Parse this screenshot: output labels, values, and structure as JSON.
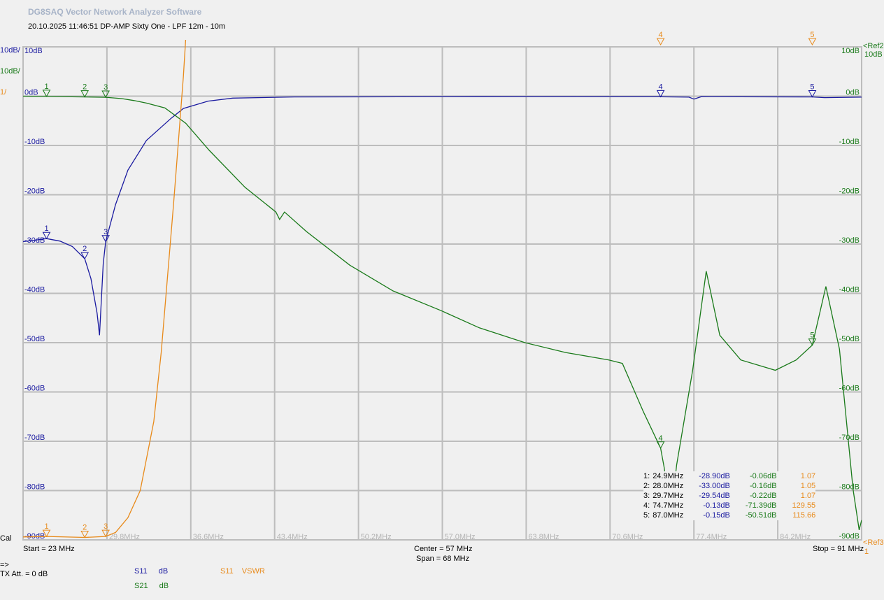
{
  "app_title": "DG8SAQ Vector Network Analyzer Software",
  "subtitle": "20.10.2025   11:46:51   DP-AMP Sixty One - LPF   12m - 10m",
  "left_scale": {
    "s11": "10dB/",
    "s21": "10dB/",
    "vswr": "1/"
  },
  "cal_label": "Cal",
  "start_label": "Start = 23 MHz",
  "center_label": "Center = 57 MHz",
  "span_label": "Span = 68 MHz",
  "stop_label": "Stop = 91 MHz",
  "arrow_label": "=>",
  "tx_att_label": "TX Att.  = 0 dB",
  "ref_top": {
    "label": "<Ref2",
    "value": "10dB"
  },
  "ref_bottom": {
    "label": "<Ref3",
    "value": "1"
  },
  "legend": [
    {
      "param": "S11",
      "unit": "dB",
      "color": "#1a1aa0"
    },
    {
      "param": "S21",
      "unit": "dB",
      "color": "#1a7a1a"
    },
    {
      "param": "S11",
      "unit": "VSWR",
      "color": "#e88a1a"
    }
  ],
  "colors": {
    "s11": "#1a1aa0",
    "s21": "#1a7a1a",
    "vswr": "#e88a1a",
    "grid": "#bdbdbd"
  },
  "marker_table": [
    {
      "n": "1:",
      "freq": "24.9MHz",
      "s11": "-28.90dB",
      "s21": "-0.06dB",
      "vswr": "1.07"
    },
    {
      "n": "2:",
      "freq": "28.0MHz",
      "s11": "-33.00dB",
      "s21": "-0.16dB",
      "vswr": "1.05"
    },
    {
      "n": "3:",
      "freq": "29.7MHz",
      "s11": "-29.54dB",
      "s21": "-0.22dB",
      "vswr": "1.07"
    },
    {
      "n": "4:",
      "freq": "74.7MHz",
      "s11": "-0.13dB",
      "s21": "-71.39dB",
      "vswr": "129.55"
    },
    {
      "n": "5:",
      "freq": "87.0MHz",
      "s11": "-0.15dB",
      "s21": "-50.51dB",
      "vswr": "115.66"
    }
  ],
  "chart_data": {
    "type": "line",
    "xlim": [
      23,
      91
    ],
    "ylim_db": [
      -90,
      10
    ],
    "ylim_vswr": [
      1,
      11
    ],
    "grid": true,
    "x_ticks": [
      "29.8MHz",
      "36.6MHz",
      "43.4MHz",
      "50.2MHz",
      "57.0MHz",
      "63.8MHz",
      "70.6MHz",
      "77.4MHz",
      "84.2MHz"
    ],
    "y_ticks_left": [
      "10dB",
      "0dB",
      "-10dB",
      "-20dB",
      "-30dB",
      "-40dB",
      "-50dB",
      "-60dB",
      "-70dB",
      "-80dB",
      "-90dB"
    ],
    "y_ticks_right": [
      "10dB",
      "0dB",
      "-10dB",
      "-20dB",
      "-30dB",
      "-40dB",
      "-50dB",
      "-60dB",
      "-70dB",
      "-80dB",
      "-90dB"
    ],
    "series": [
      {
        "name": "S11",
        "unit": "dB",
        "axis": "db",
        "color": "#1a1aa0",
        "x": [
          23,
          24,
          24.9,
          26,
          27,
          28,
          28.5,
          29,
          29.2,
          29.5,
          29.7,
          30.5,
          31.5,
          33,
          35,
          36,
          38,
          40,
          45,
          60,
          74.7,
          77,
          77.4,
          78,
          87,
          88,
          91
        ],
        "y": [
          -29.5,
          -29.2,
          -28.9,
          -29.4,
          -30.5,
          -33,
          -37,
          -44,
          -48.5,
          -34,
          -29.5,
          -22,
          -15,
          -9,
          -4.5,
          -2.5,
          -1,
          -0.4,
          -0.15,
          -0.1,
          -0.13,
          -0.2,
          -0.6,
          -0.1,
          -0.15,
          -0.3,
          -0.2
        ]
      },
      {
        "name": "S21",
        "unit": "dB",
        "axis": "db",
        "color": "#1a7a1a",
        "x": [
          23,
          24.9,
          28,
          29.7,
          31,
          32,
          33,
          34.5,
          36.2,
          38.1,
          41,
          43.5,
          43.8,
          44.2,
          46,
          49.5,
          53,
          56.9,
          60,
          63.7,
          67,
          70.5,
          71.6,
          73.3,
          74.7,
          75,
          75.5,
          76,
          77.3,
          78.4,
          79.5,
          81.2,
          84,
          85.7,
          87,
          88.1,
          89.2,
          90.3,
          90.8,
          91
        ],
        "y": [
          0,
          -0.06,
          -0.16,
          -0.22,
          -0.5,
          -0.9,
          -1.4,
          -2.4,
          -5.5,
          -11,
          -18.5,
          -23.5,
          -25,
          -23.5,
          -27.5,
          -34.3,
          -39.5,
          -43.5,
          -47,
          -50,
          -52,
          -53.5,
          -54.2,
          -64,
          -71.4,
          -75.5,
          -86,
          -74.8,
          -55.6,
          -35.5,
          -48.5,
          -53.5,
          -55.6,
          -53.5,
          -50.5,
          -38.6,
          -51.3,
          -79.7,
          -88,
          -86
        ]
      },
      {
        "name": "S11",
        "unit": "VSWR",
        "axis": "vswr",
        "color": "#e88a1a",
        "x": [
          23,
          24.9,
          28,
          29.7,
          30.5,
          31.5,
          32.5,
          33.6,
          34.2,
          34.7,
          35.2,
          35.6,
          36,
          36.2
        ],
        "y": [
          1.06,
          1.07,
          1.05,
          1.07,
          1.15,
          1.45,
          2.0,
          3.4,
          4.8,
          6.3,
          7.8,
          9.1,
          10.4,
          11.2
        ]
      }
    ],
    "markers": [
      {
        "id": "1",
        "freq": 24.9,
        "s11": -28.9,
        "s21": -0.06,
        "vswr": 1.07
      },
      {
        "id": "2",
        "freq": 28.0,
        "s11": -33.0,
        "s21": -0.16,
        "vswr": 1.05
      },
      {
        "id": "3",
        "freq": 29.7,
        "s11": -29.54,
        "s21": -0.22,
        "vswr": 1.07
      },
      {
        "id": "4",
        "freq": 74.7,
        "s11": -0.13,
        "s21": -71.39,
        "vswr": 129.55
      },
      {
        "id": "5",
        "freq": 87.0,
        "s11": -0.15,
        "s21": -50.51,
        "vswr": 115.66
      }
    ]
  }
}
